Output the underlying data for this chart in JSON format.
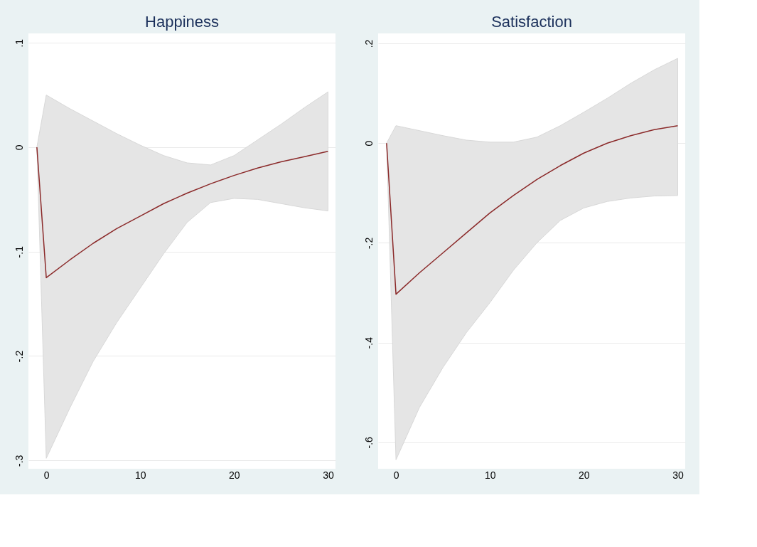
{
  "chart_data": [
    {
      "type": "line",
      "title": "Happiness",
      "x": [
        -1,
        0,
        2.5,
        5,
        7.5,
        10,
        12.5,
        15,
        17.5,
        20,
        22.5,
        25,
        27.5,
        30
      ],
      "series": [
        {
          "color": "#8b2a2a",
          "values": [
            0,
            -0.125,
            -0.108,
            -0.092,
            -0.078,
            -0.066,
            -0.054,
            -0.044,
            -0.035,
            -0.027,
            -0.02,
            -0.014,
            -0.009,
            -0.004
          ],
          "lower": [
            0,
            -0.298,
            -0.25,
            -0.205,
            -0.168,
            -0.135,
            -0.102,
            -0.072,
            -0.053,
            -0.049,
            -0.05,
            -0.054,
            -0.058,
            -0.061
          ],
          "upper": [
            0,
            0.05,
            0.037,
            0.025,
            0.013,
            0.002,
            -0.008,
            -0.015,
            -0.017,
            -0.008,
            0.007,
            0.022,
            0.038,
            0.053
          ]
        }
      ],
      "xlim": [
        -1.9,
        30.8
      ],
      "xticks": [
        0,
        10,
        20,
        30
      ],
      "ylim": [
        -0.308,
        0.109
      ],
      "yticks": [
        {
          "value": -0.3,
          "label": "-.3"
        },
        {
          "value": -0.2,
          "label": "-.2"
        },
        {
          "value": -0.1,
          "label": "-.1"
        },
        0,
        {
          "value": 0.1,
          "label": ".1"
        }
      ],
      "grid": "y"
    },
    {
      "type": "line",
      "title": "Satisfaction",
      "x": [
        -1,
        0,
        2.5,
        5,
        7.5,
        10,
        12.5,
        15,
        17.5,
        20,
        22.5,
        25,
        27.5,
        30
      ],
      "series": [
        {
          "color": "#8b2a2a",
          "values": [
            0,
            -0.303,
            -0.26,
            -0.22,
            -0.18,
            -0.14,
            -0.105,
            -0.073,
            -0.045,
            -0.02,
            0.0,
            0.015,
            0.027,
            0.035
          ],
          "lower": [
            0,
            -0.635,
            -0.53,
            -0.45,
            -0.38,
            -0.32,
            -0.255,
            -0.2,
            -0.155,
            -0.13,
            -0.117,
            -0.11,
            -0.106,
            -0.105
          ],
          "upper": [
            0,
            0.035,
            0.025,
            0.015,
            0.006,
            0.002,
            0.002,
            0.012,
            0.035,
            0.062,
            0.09,
            0.12,
            0.147,
            0.17
          ]
        }
      ],
      "xlim": [
        -1.9,
        30.8
      ],
      "xticks": [
        0,
        10,
        20,
        30
      ],
      "ylim": [
        -0.653,
        0.22
      ],
      "yticks": [
        {
          "value": -0.6,
          "label": "-.6"
        },
        {
          "value": -0.4,
          "label": "-.4"
        },
        {
          "value": -0.2,
          "label": "-.2"
        },
        0,
        {
          "value": 0.2,
          "label": ".2"
        }
      ],
      "grid": "y"
    }
  ]
}
